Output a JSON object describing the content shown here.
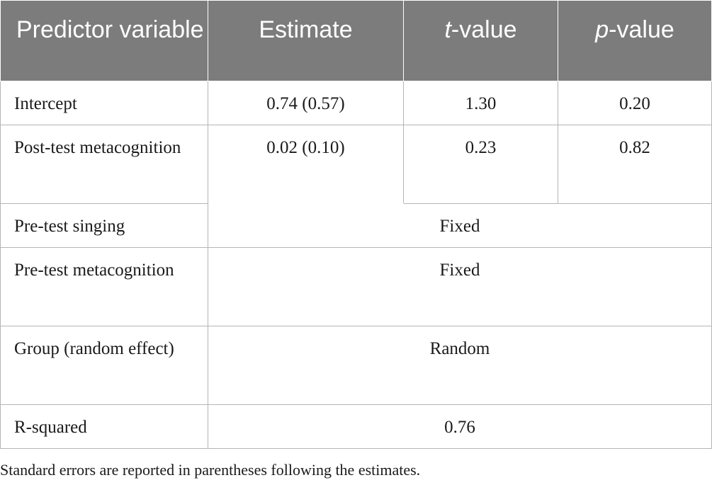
{
  "table": {
    "header": {
      "predictor": "Predictor variable",
      "estimate": "Estimate",
      "t_italic": "t",
      "t_rest": "-value",
      "p_italic": "p",
      "p_rest": "-value"
    },
    "rows": [
      {
        "predictor": "Intercept",
        "estimate": "0.74 (0.57)",
        "t_value": "1.30",
        "p_value": "0.20"
      },
      {
        "predictor": "Post-test metacognition",
        "estimate": "0.02 (0.10)",
        "t_value": "0.23",
        "p_value": "0.82"
      },
      {
        "predictor": "Pre-test singing",
        "merged": "Fixed"
      },
      {
        "predictor": "Pre-test metacognition",
        "merged": "Fixed"
      },
      {
        "predictor": "Group (random effect)",
        "merged": "Random"
      },
      {
        "predictor": "R-squared",
        "merged": "0.76"
      }
    ]
  },
  "footnote": "Standard errors are reported in parentheses following the estimates."
}
